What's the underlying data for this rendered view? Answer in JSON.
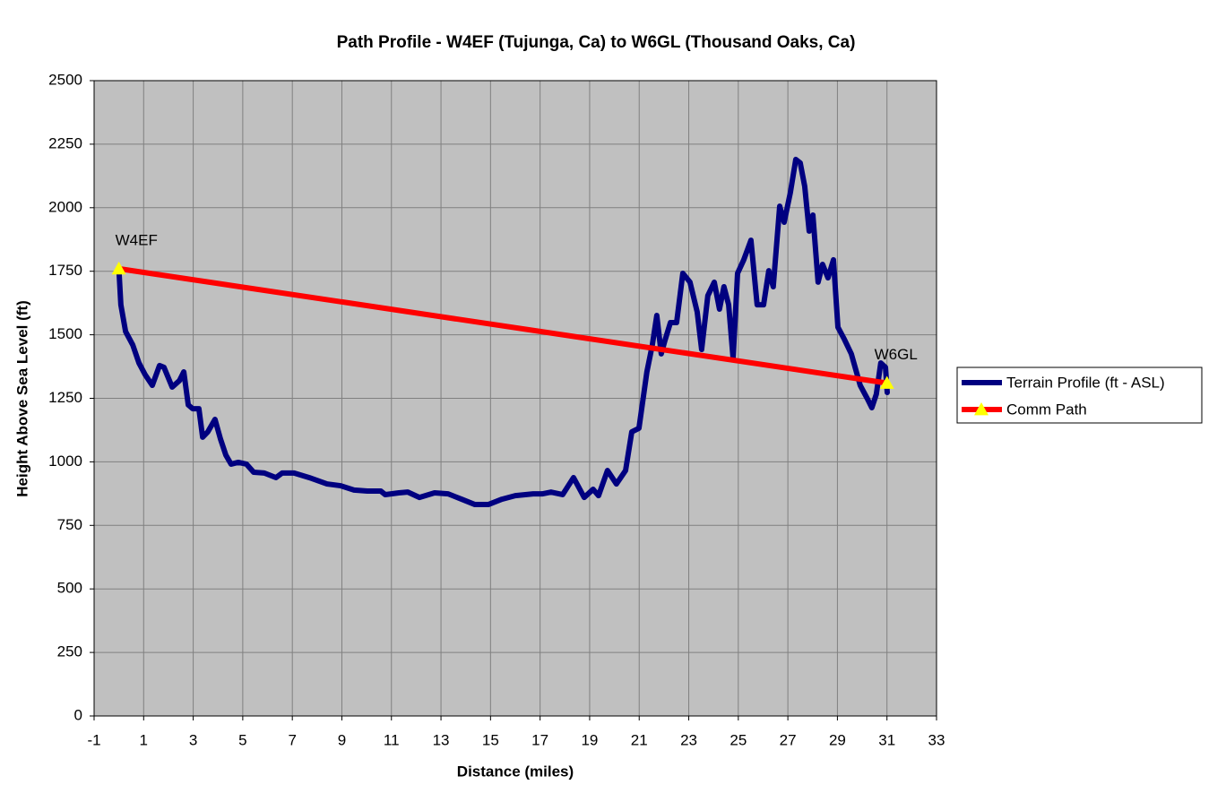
{
  "chart_data": {
    "type": "line",
    "title": "Path Profile - W4EF (Tujunga, Ca) to W6GL (Thousand Oaks, Ca)",
    "x_label": "Distance (miles)",
    "y_label": "Height Above Sea Level (ft)",
    "xlim": [
      -1,
      33
    ],
    "xticks": [
      -1,
      1,
      3,
      5,
      7,
      9,
      11,
      13,
      15,
      17,
      19,
      21,
      23,
      25,
      27,
      29,
      31,
      33
    ],
    "ylim": [
      0,
      2500
    ],
    "yticks": [
      0,
      250,
      500,
      750,
      1000,
      1250,
      1500,
      1750,
      2000,
      2250,
      2500
    ],
    "grid": true,
    "legend": "right",
    "background": "#c0c0c0",
    "annotations": [
      "W4EF",
      "W6GL"
    ],
    "series": [
      {
        "name": "Terrain Profile (ft - ASL)",
        "color": "#000080",
        "x": [
          0,
          0.08,
          0.27,
          0.56,
          0.81,
          1.06,
          1.35,
          1.64,
          1.82,
          2.15,
          2.44,
          2.62,
          2.8,
          2.98,
          3.23,
          3.38,
          3.59,
          3.88,
          4.1,
          4.32,
          4.53,
          4.82,
          5.15,
          5.44,
          5.87,
          6.34,
          6.59,
          7.07,
          7.68,
          8.4,
          8.95,
          9.49,
          10.03,
          10.57,
          10.75,
          11.3,
          11.66,
          12.13,
          12.74,
          13.29,
          13.83,
          14.37,
          14.91,
          15.46,
          16.0,
          16.72,
          17.08,
          17.44,
          17.91,
          18.35,
          18.78,
          19.14,
          19.36,
          19.72,
          20.08,
          20.45,
          20.7,
          20.99,
          21.31,
          21.53,
          21.71,
          21.89,
          22.04,
          22.26,
          22.51,
          22.76,
          23.05,
          23.34,
          23.52,
          23.77,
          24.03,
          24.24,
          24.42,
          24.61,
          24.79,
          24.97,
          25.22,
          25.51,
          25.76,
          26.02,
          26.23,
          26.41,
          26.67,
          26.85,
          27.1,
          27.32,
          27.5,
          27.68,
          27.86,
          28.01,
          28.22,
          28.4,
          28.62,
          28.84,
          29.02,
          29.27,
          29.56,
          29.92,
          30.21,
          30.39,
          30.57,
          30.75,
          30.94,
          31.01
        ],
        "values": [
          1759,
          1618,
          1513,
          1460,
          1389,
          1343,
          1301,
          1379,
          1372,
          1294,
          1319,
          1354,
          1224,
          1209,
          1209,
          1097,
          1118,
          1167,
          1090,
          1026,
          991,
          998,
          991,
          959,
          956,
          938,
          956,
          956,
          938,
          913,
          906,
          889,
          885,
          885,
          871,
          878,
          881,
          860,
          878,
          874,
          853,
          832,
          832,
          853,
          867,
          874,
          874,
          881,
          871,
          938,
          860,
          892,
          867,
          966,
          913,
          966,
          1118,
          1132,
          1354,
          1460,
          1576,
          1425,
          1478,
          1548,
          1548,
          1742,
          1707,
          1590,
          1442,
          1654,
          1707,
          1601,
          1689,
          1618,
          1407,
          1742,
          1795,
          1872,
          1618,
          1618,
          1752,
          1689,
          2006,
          1943,
          2059,
          2190,
          2176,
          2084,
          1908,
          1971,
          1707,
          1777,
          1724,
          1795,
          1530,
          1484,
          1425,
          1301,
          1248,
          1213,
          1266,
          1389,
          1372,
          1273
        ]
      },
      {
        "name": "Comm Path",
        "color": "#ff0000",
        "marker_color": "#ffff00",
        "x": [
          0,
          31
        ],
        "values": [
          1760,
          1310
        ]
      }
    ]
  }
}
